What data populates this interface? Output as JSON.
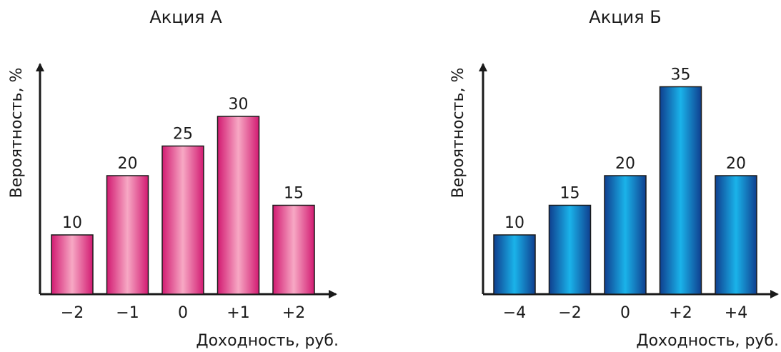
{
  "chart_data": [
    {
      "type": "bar",
      "title": "Акция А",
      "xlabel": "Доходность, руб.",
      "ylabel": "Вероятность, %",
      "categories": [
        "−2",
        "−1",
        "0",
        "+1",
        "+2"
      ],
      "values": [
        10,
        20,
        25,
        30,
        15
      ],
      "ylim": [
        0,
        40
      ],
      "grid": false,
      "colors": {
        "bar_edge": "#d21b72",
        "bar_center": "#f7a8c4"
      }
    },
    {
      "type": "bar",
      "title": "Акция Б",
      "xlabel": "Доходность, руб.",
      "ylabel": "Вероятность, %",
      "categories": [
        "−4",
        "−2",
        "0",
        "+2",
        "+4"
      ],
      "values": [
        10,
        15,
        20,
        35,
        20
      ],
      "ylim": [
        0,
        40
      ],
      "grid": false,
      "colors": {
        "bar_edge": "#0f3f8f",
        "bar_center": "#1ab3ea"
      }
    }
  ]
}
